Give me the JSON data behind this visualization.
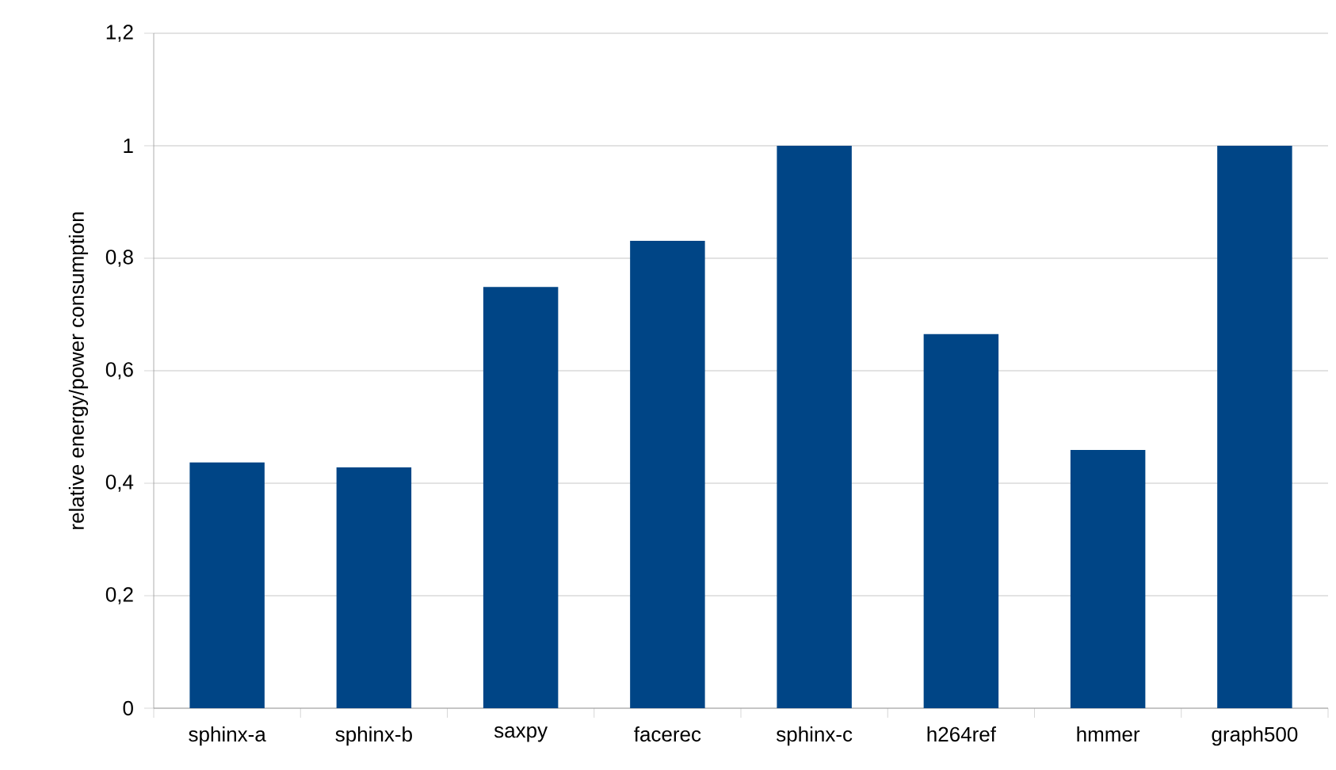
{
  "chart_data": {
    "type": "bar",
    "ylabel": "relative energy/power consumption",
    "categories": [
      "sphinx-a",
      "sphinx-b",
      "saxpy",
      "facerec",
      "sphinx-c",
      "h264ref",
      "hmmer",
      "graph500"
    ],
    "values": [
      0.437,
      0.428,
      0.749,
      0.831,
      1.0,
      0.665,
      0.459,
      1.0
    ],
    "color": "#004586",
    "ylim": [
      0,
      1.2
    ],
    "yticks": [
      0,
      {
        "value": 0.2,
        "label": "0,2"
      },
      {
        "value": 0.4,
        "label": "0,4"
      },
      {
        "value": 0.6,
        "label": "0,6"
      },
      {
        "value": 0.8,
        "label": "0,8"
      },
      1,
      {
        "value": 1.2,
        "label": "1,2"
      }
    ],
    "grid": "y"
  }
}
